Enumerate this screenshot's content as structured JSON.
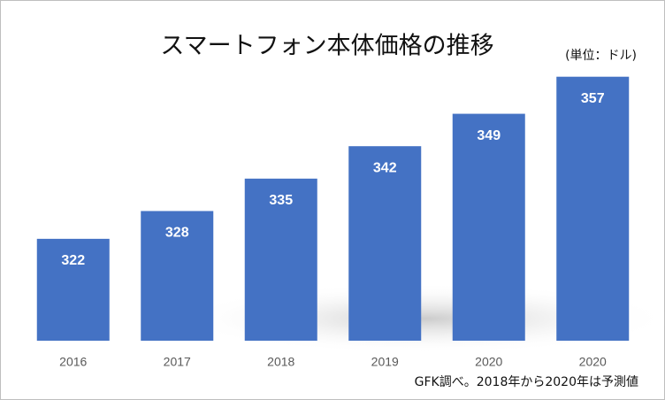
{
  "chart_data": {
    "type": "bar",
    "title": "スマートフォン本体価格の推移",
    "unit_label": "(単位：ドル)",
    "note": "GFK調べ。2018年から2020年は予測値",
    "categories": [
      "2016",
      "2017",
      "2018",
      "2019",
      "2020",
      "2020"
    ],
    "values": [
      322,
      328,
      335,
      342,
      349,
      357
    ],
    "color": "#4472c4",
    "ylim": [
      300,
      360
    ]
  }
}
